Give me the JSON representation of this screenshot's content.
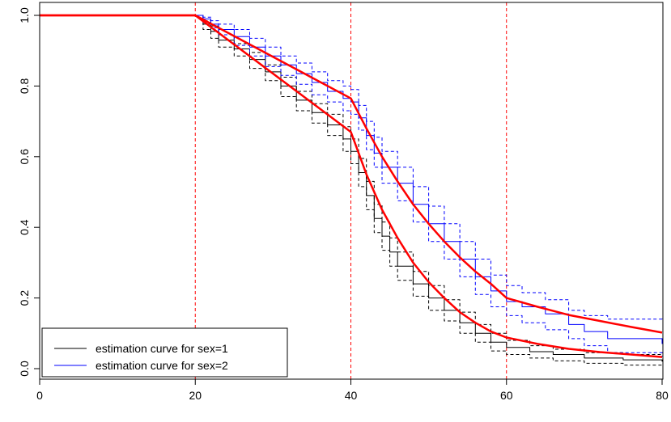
{
  "chart_data": {
    "type": "line",
    "title": "",
    "xlabel": "",
    "ylabel": "",
    "xlim": [
      0,
      80
    ],
    "ylim": [
      0,
      1
    ],
    "x_ticks": [
      "0",
      "20",
      "40",
      "60",
      "80"
    ],
    "y_ticks": [
      "0.0",
      "0.2",
      "0.4",
      "0.6",
      "0.8",
      "1.0"
    ],
    "x_tick_values": [
      0,
      20,
      40,
      60,
      80
    ],
    "y_tick_values": [
      0,
      0.2,
      0.4,
      0.6,
      0.8,
      1.0
    ],
    "vlines": [
      20,
      40,
      60
    ],
    "vline_color": "#ff0000",
    "grid": false,
    "legend": {
      "position": "bottom-left",
      "entries": [
        {
          "label": "estimation curve for sex=1",
          "color": "#000000"
        },
        {
          "label": "estimation curve for sex=2",
          "color": "#0000ff"
        }
      ]
    },
    "series": [
      {
        "style": "step",
        "color": "#000000",
        "dash": false,
        "points": [
          [
            0,
            1.0
          ],
          [
            20,
            1.0
          ],
          [
            21,
            0.975
          ],
          [
            22,
            0.955
          ],
          [
            23,
            0.93
          ],
          [
            25,
            0.905
          ],
          [
            27,
            0.875
          ],
          [
            29,
            0.84
          ],
          [
            31,
            0.8
          ],
          [
            33,
            0.76
          ],
          [
            35,
            0.725
          ],
          [
            37,
            0.69
          ],
          [
            39,
            0.65
          ],
          [
            40,
            0.615
          ],
          [
            41,
            0.555
          ],
          [
            42,
            0.49
          ],
          [
            43,
            0.425
          ],
          [
            44,
            0.375
          ],
          [
            45,
            0.33
          ],
          [
            46,
            0.29
          ],
          [
            48,
            0.24
          ],
          [
            50,
            0.2
          ],
          [
            52,
            0.165
          ],
          [
            54,
            0.13
          ],
          [
            56,
            0.1
          ],
          [
            58,
            0.075
          ],
          [
            60,
            0.06
          ],
          [
            63,
            0.048
          ],
          [
            66,
            0.04
          ],
          [
            70,
            0.03
          ],
          [
            75,
            0.025
          ],
          [
            80,
            0.02
          ]
        ]
      },
      {
        "style": "step",
        "color": "#000000",
        "dash": true,
        "points": [
          [
            0,
            1.0
          ],
          [
            20,
            1.0
          ],
          [
            21,
            0.985
          ],
          [
            22,
            0.97
          ],
          [
            23,
            0.945
          ],
          [
            25,
            0.92
          ],
          [
            27,
            0.895
          ],
          [
            29,
            0.86
          ],
          [
            31,
            0.825
          ],
          [
            33,
            0.785
          ],
          [
            35,
            0.75
          ],
          [
            37,
            0.72
          ],
          [
            39,
            0.685
          ],
          [
            40,
            0.65
          ],
          [
            41,
            0.595
          ],
          [
            42,
            0.53
          ],
          [
            43,
            0.465
          ],
          [
            44,
            0.415
          ],
          [
            45,
            0.37
          ],
          [
            46,
            0.33
          ],
          [
            48,
            0.275
          ],
          [
            50,
            0.235
          ],
          [
            52,
            0.195
          ],
          [
            54,
            0.16
          ],
          [
            56,
            0.125
          ],
          [
            58,
            0.1
          ],
          [
            60,
            0.08
          ],
          [
            63,
            0.065
          ],
          [
            66,
            0.055
          ],
          [
            70,
            0.045
          ],
          [
            75,
            0.04
          ],
          [
            80,
            0.035
          ]
        ]
      },
      {
        "style": "step",
        "color": "#000000",
        "dash": true,
        "points": [
          [
            0,
            1.0
          ],
          [
            20,
            1.0
          ],
          [
            21,
            0.96
          ],
          [
            22,
            0.935
          ],
          [
            23,
            0.91
          ],
          [
            25,
            0.885
          ],
          [
            27,
            0.85
          ],
          [
            29,
            0.815
          ],
          [
            31,
            0.77
          ],
          [
            33,
            0.73
          ],
          [
            35,
            0.695
          ],
          [
            37,
            0.66
          ],
          [
            39,
            0.615
          ],
          [
            40,
            0.58
          ],
          [
            41,
            0.515
          ],
          [
            42,
            0.45
          ],
          [
            43,
            0.385
          ],
          [
            44,
            0.335
          ],
          [
            45,
            0.29
          ],
          [
            46,
            0.25
          ],
          [
            48,
            0.205
          ],
          [
            50,
            0.165
          ],
          [
            52,
            0.135
          ],
          [
            54,
            0.1
          ],
          [
            56,
            0.075
          ],
          [
            58,
            0.05
          ],
          [
            60,
            0.04
          ],
          [
            63,
            0.03
          ],
          [
            66,
            0.022
          ],
          [
            70,
            0.015
          ],
          [
            75,
            0.01
          ],
          [
            80,
            0.008
          ]
        ]
      },
      {
        "style": "step",
        "color": "#0000ff",
        "dash": false,
        "points": [
          [
            0,
            1.0
          ],
          [
            20,
            1.0
          ],
          [
            21,
            0.99
          ],
          [
            22,
            0.975
          ],
          [
            23,
            0.96
          ],
          [
            25,
            0.94
          ],
          [
            27,
            0.91
          ],
          [
            29,
            0.885
          ],
          [
            31,
            0.86
          ],
          [
            33,
            0.835
          ],
          [
            35,
            0.81
          ],
          [
            37,
            0.785
          ],
          [
            39,
            0.765
          ],
          [
            40,
            0.755
          ],
          [
            41,
            0.71
          ],
          [
            42,
            0.66
          ],
          [
            43,
            0.61
          ],
          [
            44,
            0.57
          ],
          [
            46,
            0.525
          ],
          [
            48,
            0.465
          ],
          [
            50,
            0.41
          ],
          [
            52,
            0.36
          ],
          [
            54,
            0.31
          ],
          [
            56,
            0.26
          ],
          [
            58,
            0.22
          ],
          [
            60,
            0.19
          ],
          [
            62,
            0.175
          ],
          [
            65,
            0.155
          ],
          [
            68,
            0.125
          ],
          [
            70,
            0.105
          ],
          [
            73,
            0.085
          ],
          [
            80,
            0.07
          ]
        ]
      },
      {
        "style": "step",
        "color": "#0000ff",
        "dash": true,
        "points": [
          [
            0,
            1.0
          ],
          [
            20,
            1.0
          ],
          [
            21,
            0.995
          ],
          [
            22,
            0.985
          ],
          [
            23,
            0.975
          ],
          [
            25,
            0.96
          ],
          [
            27,
            0.935
          ],
          [
            29,
            0.91
          ],
          [
            31,
            0.885
          ],
          [
            33,
            0.865
          ],
          [
            35,
            0.84
          ],
          [
            37,
            0.815
          ],
          [
            39,
            0.8
          ],
          [
            40,
            0.79
          ],
          [
            41,
            0.745
          ],
          [
            42,
            0.7
          ],
          [
            43,
            0.655
          ],
          [
            44,
            0.615
          ],
          [
            46,
            0.57
          ],
          [
            48,
            0.515
          ],
          [
            50,
            0.46
          ],
          [
            52,
            0.41
          ],
          [
            54,
            0.36
          ],
          [
            56,
            0.31
          ],
          [
            58,
            0.265
          ],
          [
            60,
            0.235
          ],
          [
            62,
            0.215
          ],
          [
            65,
            0.195
          ],
          [
            68,
            0.165
          ],
          [
            70,
            0.15
          ],
          [
            73,
            0.14
          ],
          [
            80,
            0.135
          ]
        ]
      },
      {
        "style": "step",
        "color": "#0000ff",
        "dash": true,
        "points": [
          [
            0,
            1.0
          ],
          [
            20,
            1.0
          ],
          [
            21,
            0.98
          ],
          [
            22,
            0.965
          ],
          [
            23,
            0.945
          ],
          [
            25,
            0.915
          ],
          [
            27,
            0.885
          ],
          [
            29,
            0.855
          ],
          [
            31,
            0.83
          ],
          [
            33,
            0.805
          ],
          [
            35,
            0.775
          ],
          [
            37,
            0.755
          ],
          [
            39,
            0.73
          ],
          [
            40,
            0.72
          ],
          [
            41,
            0.675
          ],
          [
            42,
            0.62
          ],
          [
            43,
            0.57
          ],
          [
            44,
            0.525
          ],
          [
            46,
            0.475
          ],
          [
            48,
            0.415
          ],
          [
            50,
            0.36
          ],
          [
            52,
            0.31
          ],
          [
            54,
            0.26
          ],
          [
            56,
            0.21
          ],
          [
            58,
            0.175
          ],
          [
            60,
            0.15
          ],
          [
            62,
            0.13
          ],
          [
            65,
            0.11
          ],
          [
            68,
            0.085
          ],
          [
            70,
            0.065
          ],
          [
            73,
            0.045
          ],
          [
            80,
            0.035
          ]
        ]
      },
      {
        "style": "line",
        "color": "#ff0000",
        "dash": false,
        "width": 2.5,
        "points": [
          [
            0,
            1.0
          ],
          [
            20,
            1.0
          ],
          [
            40,
            0.765
          ],
          [
            42,
            0.68
          ],
          [
            44,
            0.6
          ],
          [
            46,
            0.53
          ],
          [
            48,
            0.465
          ],
          [
            50,
            0.41
          ],
          [
            52,
            0.36
          ],
          [
            54,
            0.315
          ],
          [
            56,
            0.275
          ],
          [
            58,
            0.24
          ],
          [
            60,
            0.2
          ],
          [
            64,
            0.175
          ],
          [
            68,
            0.152
          ],
          [
            72,
            0.135
          ],
          [
            76,
            0.118
          ],
          [
            80,
            0.102
          ]
        ]
      },
      {
        "style": "line",
        "color": "#ff0000",
        "dash": false,
        "width": 2.5,
        "points": [
          [
            0,
            1.0
          ],
          [
            20,
            1.0
          ],
          [
            40,
            0.67
          ],
          [
            42,
            0.55
          ],
          [
            44,
            0.45
          ],
          [
            46,
            0.37
          ],
          [
            48,
            0.3
          ],
          [
            50,
            0.245
          ],
          [
            52,
            0.2
          ],
          [
            54,
            0.16
          ],
          [
            56,
            0.13
          ],
          [
            58,
            0.105
          ],
          [
            60,
            0.088
          ],
          [
            64,
            0.07
          ],
          [
            68,
            0.056
          ],
          [
            72,
            0.047
          ],
          [
            76,
            0.04
          ],
          [
            80,
            0.033
          ]
        ]
      }
    ]
  }
}
